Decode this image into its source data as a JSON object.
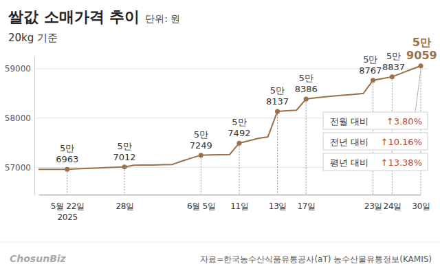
{
  "chart_data": {
    "type": "line",
    "title": "쌀값 소매가격 추이",
    "unit": "단위: 원",
    "subtitle": "20kg 기준",
    "source": "자료=한국농수산식품유통공사(aT) 농수산물유통정보(KAMIS)",
    "credit": "ChosunBiz",
    "categories": [
      null,
      null,
      null,
      "5월 22일\n2025",
      null,
      null,
      null,
      null,
      null,
      "28일",
      null,
      null,
      null,
      null,
      null,
      null,
      null,
      "6월 5일",
      null,
      null,
      null,
      "11일",
      null,
      null,
      null,
      "13일",
      null,
      null,
      "17일",
      null,
      null,
      null,
      null,
      null,
      null,
      "23일",
      null,
      "24일",
      null,
      null,
      "30일"
    ],
    "values": [
      56963,
      56963,
      56963,
      56963,
      56972,
      56980,
      56988,
      56996,
      57004,
      57012,
      57045,
      57050,
      57050,
      57055,
      57060,
      57130,
      57190,
      57249,
      57255,
      57258,
      57262,
      57492,
      57540,
      57590,
      57620,
      58137,
      58150,
      58160,
      58386,
      58410,
      58430,
      58450,
      58465,
      58480,
      58500,
      58767,
      58800,
      58837,
      58910,
      58985,
      59059
    ],
    "value_labels": [
      null,
      null,
      null,
      "5만\n6963",
      null,
      null,
      null,
      null,
      null,
      "5만\n7012",
      null,
      null,
      null,
      null,
      null,
      null,
      null,
      "5만\n7249",
      null,
      null,
      null,
      "5만\n7492",
      null,
      null,
      null,
      "5만\n8137",
      null,
      null,
      "5만\n8386",
      null,
      null,
      null,
      null,
      null,
      null,
      "5만\n8767",
      null,
      "5만\n8837",
      null,
      null,
      "5만\n9059"
    ],
    "color": "#9a7048",
    "marker": "circle",
    "data_labels": true,
    "grid": true,
    "ylim": [
      56450,
      59250
    ],
    "yticks": [
      57000,
      58000,
      59000
    ],
    "comparisons": [
      {
        "label": "전월 대비",
        "text": "↑3.80%"
      },
      {
        "label": "전년 대비",
        "text": "↑10.16%"
      },
      {
        "label": "평년 대비",
        "text": "↑13.38%"
      }
    ]
  }
}
